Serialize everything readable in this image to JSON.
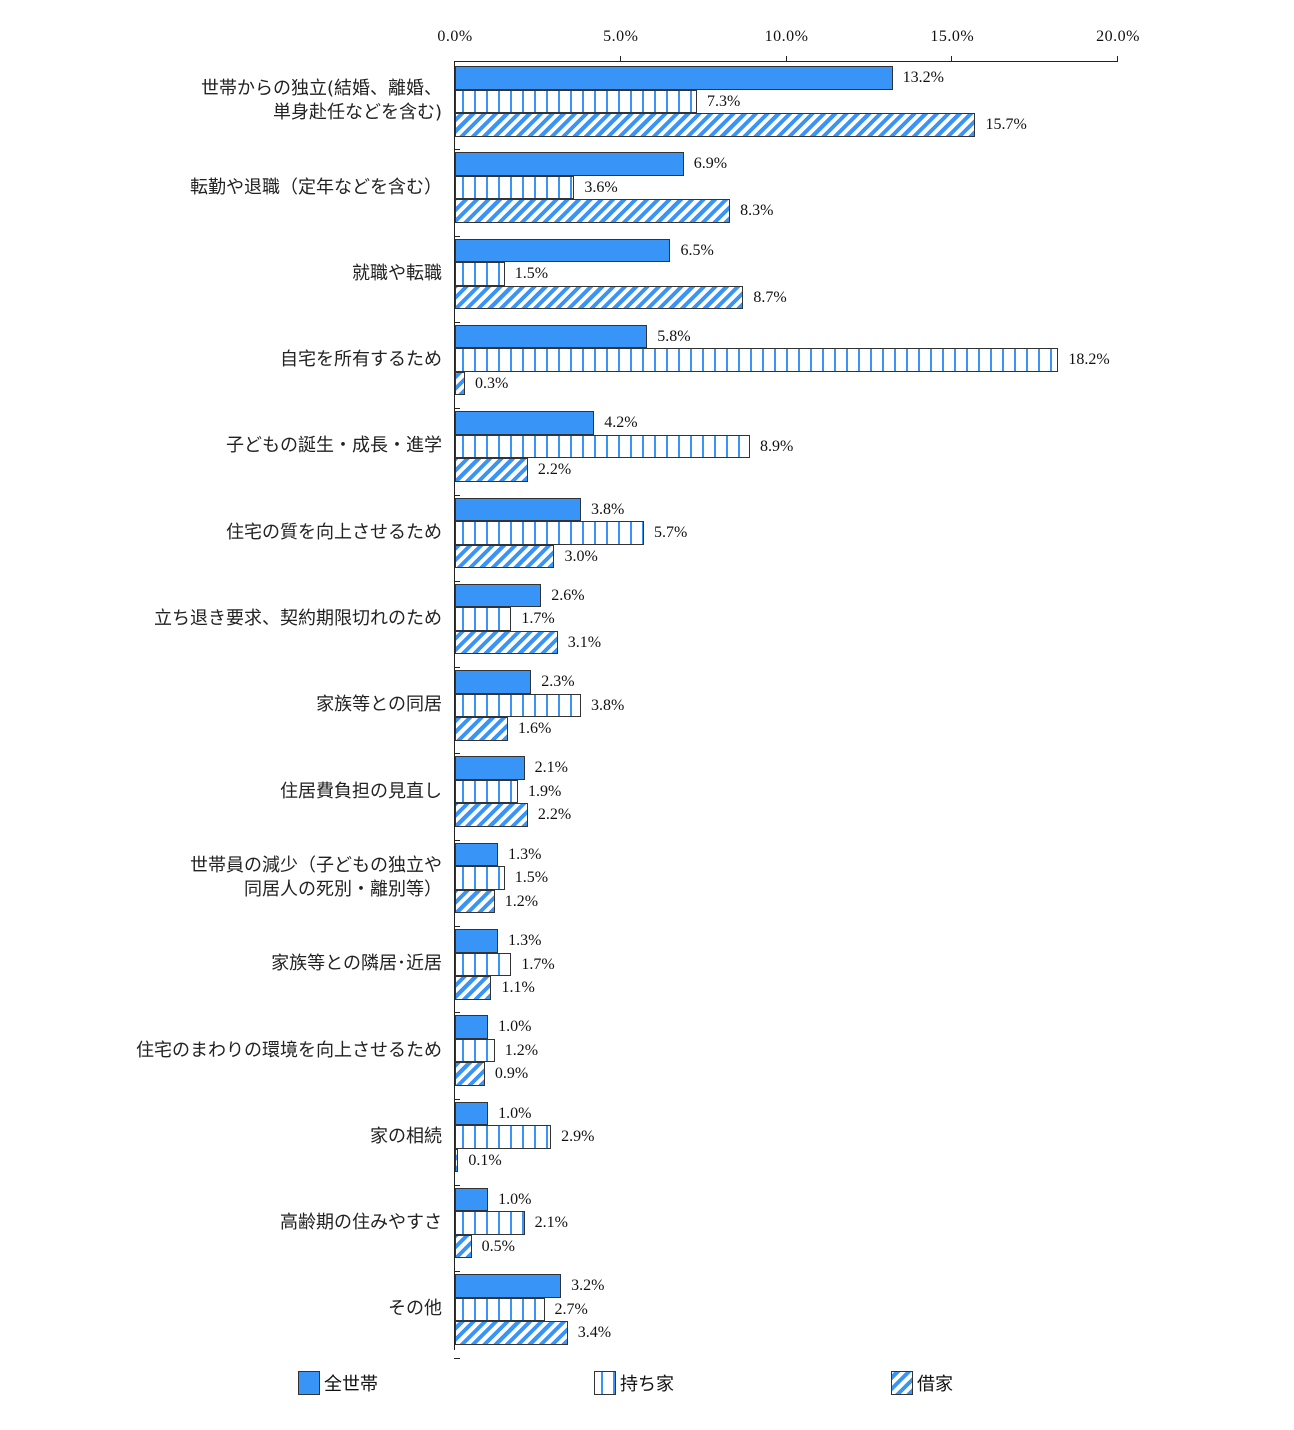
{
  "chart_data": {
    "type": "bar",
    "orientation": "horizontal",
    "title": "",
    "xlabel": "",
    "ylabel": "",
    "xlim": [
      0,
      20
    ],
    "x_ticks": [
      "0.0%",
      "5.0%",
      "10.0%",
      "15.0%",
      "20.0%"
    ],
    "x_tick_values": [
      0,
      5,
      10,
      15,
      20
    ],
    "grid": false,
    "legend_position": "bottom",
    "categories": [
      "世帯からの独立(結婚、離婚、\n単身赴任などを含む)",
      "転勤や退職（定年などを含む）",
      "就職や転職",
      "自宅を所有するため",
      "子どもの誕生・成長・進学",
      "住宅の質を向上させるため",
      "立ち退き要求、契約期限切れのため",
      "家族等との同居",
      "住居費負担の見直し",
      "世帯員の減少（子どもの独立や\n同居人の死別・離別等）",
      "家族等との隣居･近居",
      "住宅のまわりの環境を向上させるため",
      "家の相続",
      "高齢期の住みやすさ",
      "その他"
    ],
    "series": [
      {
        "name": "全世帯",
        "pattern": "solid",
        "color": "#3994f7",
        "values": [
          13.2,
          6.9,
          6.5,
          5.8,
          4.2,
          3.8,
          2.6,
          2.3,
          2.1,
          1.3,
          1.3,
          1.0,
          1.0,
          1.0,
          3.2
        ]
      },
      {
        "name": "持ち家",
        "pattern": "dotted-dashes",
        "color": "#3994f7",
        "values": [
          7.3,
          3.6,
          1.5,
          18.2,
          8.9,
          5.7,
          1.7,
          3.8,
          1.9,
          1.5,
          1.7,
          1.2,
          2.9,
          2.1,
          2.7
        ]
      },
      {
        "name": "借家",
        "pattern": "diagonal-stripes",
        "color": "#3994f7",
        "values": [
          15.7,
          8.3,
          8.7,
          0.3,
          2.2,
          3.0,
          3.1,
          1.6,
          2.2,
          1.2,
          1.1,
          0.9,
          0.1,
          0.5,
          3.4
        ]
      }
    ],
    "value_labels": [
      [
        "13.2%",
        "7.3%",
        "15.7%"
      ],
      [
        "6.9%",
        "3.6%",
        "8.3%"
      ],
      [
        "6.5%",
        "1.5%",
        "8.7%"
      ],
      [
        "5.8%",
        "18.2%",
        "0.3%"
      ],
      [
        "4.2%",
        "8.9%",
        "2.2%"
      ],
      [
        "3.8%",
        "5.7%",
        "3.0%"
      ],
      [
        "2.6%",
        "1.7%",
        "3.1%"
      ],
      [
        "2.3%",
        "3.8%",
        "1.6%"
      ],
      [
        "2.1%",
        "1.9%",
        "2.2%"
      ],
      [
        "1.3%",
        "1.5%",
        "1.2%"
      ],
      [
        "1.3%",
        "1.7%",
        "1.1%"
      ],
      [
        "1.0%",
        "1.2%",
        "0.9%"
      ],
      [
        "1.0%",
        "2.9%",
        "0.1%"
      ],
      [
        "1.0%",
        "2.1%",
        "0.5%"
      ],
      [
        "3.2%",
        "2.7%",
        "3.4%"
      ]
    ]
  },
  "legend": {
    "items": [
      {
        "label": "全世帯"
      },
      {
        "label": "持ち家"
      },
      {
        "label": "借家"
      }
    ]
  }
}
